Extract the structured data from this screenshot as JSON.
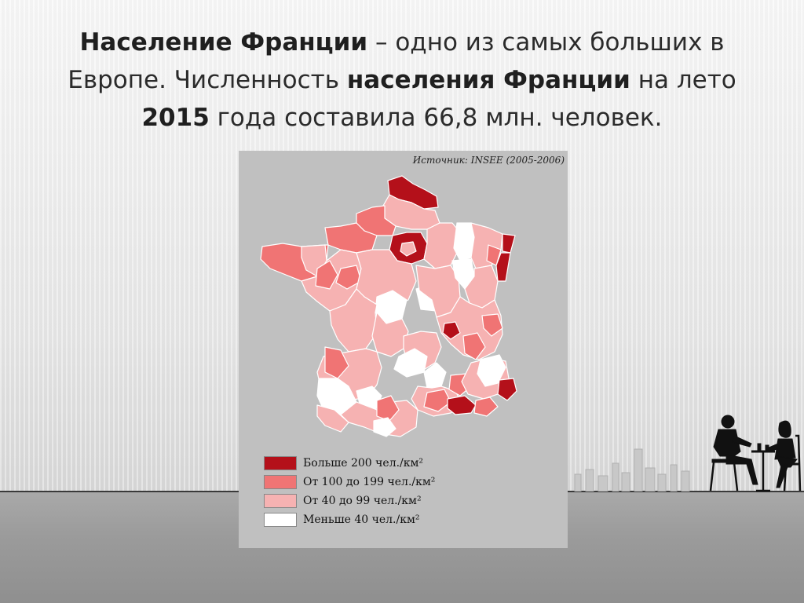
{
  "slide": {
    "title_parts": [
      {
        "text": "Население Франции",
        "bold": true
      },
      {
        "text": " – одно из самых больших в Европе.  Численность ",
        "bold": false
      },
      {
        "text": "населения Франции",
        "bold": true
      },
      {
        "text": " на лето ",
        "bold": false
      },
      {
        "text": "2015",
        "bold": true
      },
      {
        "text": " года составила 66,8 млн. человек.",
        "bold": false
      }
    ]
  },
  "map": {
    "source": "Источник: INSEE (2005-2006)",
    "colors": {
      "background": "#c0c0c0",
      "border": "#ffffff",
      "high": "#b4101a",
      "mid": "#f07474",
      "low": "#f6b2b2",
      "very_low": "#ffffff"
    },
    "legend": [
      {
        "label": "Больше 200 чел./км²",
        "class": "high"
      },
      {
        "label": "От 100 до 199 чел./км²",
        "class": "mid"
      },
      {
        "label": "От 40 до 99 чел./км²",
        "class": "low"
      },
      {
        "label": "Меньше 40 чел./км²",
        "class": "very_low"
      }
    ]
  }
}
